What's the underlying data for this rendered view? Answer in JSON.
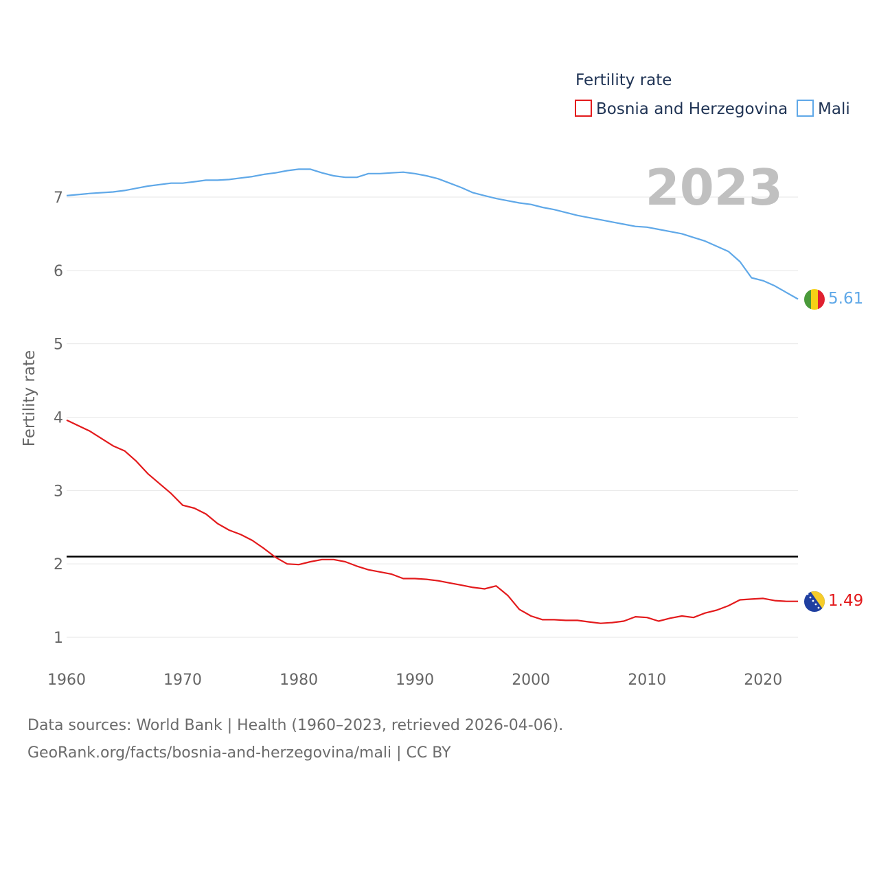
{
  "chart_data": {
    "type": "line",
    "ylabel": "Fertility rate",
    "xlabel": "",
    "year_label": "2023",
    "xlim": [
      1960,
      2023
    ],
    "ylim": [
      0.7,
      7.7
    ],
    "x_ticks": [
      1960,
      1970,
      1980,
      1990,
      2000,
      2010,
      2020
    ],
    "y_ticks": [
      1,
      2,
      3,
      4,
      5,
      6,
      7
    ],
    "grid": true,
    "legend": {
      "title": "Fertility rate",
      "position": "top-right"
    },
    "reference_line": {
      "y": 2.1,
      "color": "#000000"
    },
    "series": [
      {
        "name": "Bosnia and Herzegovina",
        "color": "#e31a1c",
        "end_label": "1.49",
        "flag": "bosnia-flag",
        "x": [
          1960,
          1962,
          1964,
          1965,
          1966,
          1967,
          1969,
          1970,
          1971,
          1972,
          1973,
          1974,
          1975,
          1976,
          1977,
          1978,
          1979,
          1980,
          1981,
          1982,
          1983,
          1984,
          1985,
          1986,
          1988,
          1989,
          1990,
          1991,
          1992,
          1993,
          1994,
          1995,
          1996,
          1997,
          1998,
          1999,
          2000,
          2001,
          2002,
          2003,
          2004,
          2005,
          2006,
          2007,
          2008,
          2009,
          2010,
          2011,
          2012,
          2013,
          2014,
          2015,
          2016,
          2017,
          2018,
          2019,
          2020,
          2021,
          2022,
          2023
        ],
        "values": [
          3.96,
          3.81,
          3.61,
          3.54,
          3.4,
          3.23,
          2.96,
          2.8,
          2.76,
          2.68,
          2.55,
          2.46,
          2.4,
          2.32,
          2.21,
          2.09,
          2.0,
          1.99,
          2.03,
          2.06,
          2.06,
          2.03,
          1.97,
          1.92,
          1.86,
          1.8,
          1.8,
          1.79,
          1.77,
          1.74,
          1.71,
          1.68,
          1.66,
          1.7,
          1.57,
          1.38,
          1.29,
          1.24,
          1.24,
          1.23,
          1.23,
          1.21,
          1.19,
          1.2,
          1.22,
          1.28,
          1.27,
          1.22,
          1.26,
          1.29,
          1.27,
          1.33,
          1.37,
          1.43,
          1.51,
          1.52,
          1.53,
          1.5,
          1.49,
          1.49
        ]
      },
      {
        "name": "Mali",
        "color": "#5fa8e8",
        "end_label": "5.61",
        "flag": "mali-flag",
        "x": [
          1960,
          1962,
          1964,
          1965,
          1966,
          1967,
          1969,
          1970,
          1971,
          1972,
          1973,
          1974,
          1975,
          1976,
          1977,
          1978,
          1979,
          1980,
          1981,
          1982,
          1983,
          1984,
          1985,
          1986,
          1987,
          1988,
          1989,
          1990,
          1991,
          1992,
          1993,
          1994,
          1995,
          1996,
          1997,
          1998,
          1999,
          2000,
          2001,
          2002,
          2003,
          2004,
          2005,
          2006,
          2007,
          2008,
          2009,
          2010,
          2011,
          2012,
          2013,
          2014,
          2015,
          2016,
          2017,
          2018,
          2019,
          2020,
          2021,
          2022,
          2023
        ],
        "values": [
          7.02,
          7.05,
          7.07,
          7.09,
          7.12,
          7.15,
          7.19,
          7.19,
          7.21,
          7.23,
          7.23,
          7.24,
          7.26,
          7.28,
          7.31,
          7.33,
          7.36,
          7.38,
          7.38,
          7.33,
          7.29,
          7.27,
          7.27,
          7.32,
          7.32,
          7.33,
          7.34,
          7.32,
          7.29,
          7.25,
          7.19,
          7.13,
          7.06,
          7.02,
          6.98,
          6.95,
          6.92,
          6.9,
          6.86,
          6.83,
          6.79,
          6.75,
          6.72,
          6.69,
          6.66,
          6.63,
          6.6,
          6.59,
          6.56,
          6.53,
          6.5,
          6.45,
          6.4,
          6.33,
          6.26,
          6.12,
          5.9,
          5.86,
          5.79,
          5.7,
          5.61
        ]
      }
    ]
  },
  "footer": {
    "line1": "Data sources: World Bank | Health (1960–2023, retrieved 2026-04-06).",
    "line2": "GeoRank.org/facts/bosnia-and-herzegovina/mali | CC BY"
  }
}
